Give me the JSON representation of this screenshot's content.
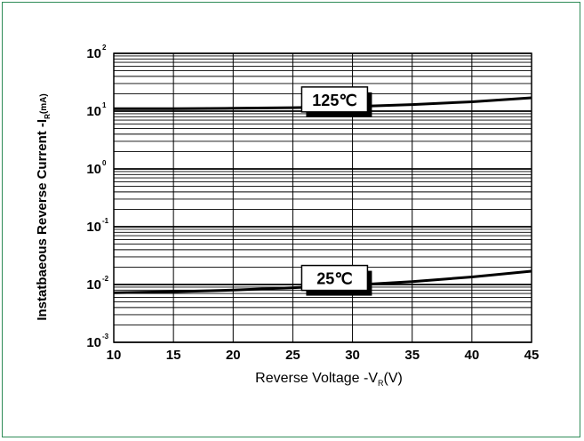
{
  "chart_data": {
    "type": "line",
    "title": "",
    "xlabel": "Reverse Voltage -V",
    "xlabel_sub": "R",
    "xlabel_unit": "(V)",
    "ylabel": "Instatbaeous Reverse Current -I",
    "ylabel_sub": "R",
    "ylabel_unit": "(mA)",
    "xlim": [
      10,
      45
    ],
    "ylim": [
      0.001,
      100
    ],
    "yscale": "log",
    "x_ticks": [
      "10",
      "15",
      "20",
      "25",
      "30",
      "35",
      "40",
      "45"
    ],
    "y_ticks": [
      {
        "base": "10",
        "exp": "2"
      },
      {
        "base": "10",
        "exp": "1"
      },
      {
        "base": "10",
        "exp": "0"
      },
      {
        "base": "10",
        "exp": "-1"
      },
      {
        "base": "10",
        "exp": "-2"
      },
      {
        "base": "10",
        "exp": "-3"
      }
    ],
    "grid": true,
    "series": [
      {
        "name": "125℃",
        "x": [
          10,
          15,
          20,
          25,
          30,
          35,
          40,
          45
        ],
        "y": [
          11,
          11,
          11.2,
          11.5,
          12,
          13,
          14.5,
          17
        ]
      },
      {
        "name": "25℃",
        "x": [
          10,
          15,
          20,
          25,
          30,
          35,
          40,
          45
        ],
        "y": [
          0.0072,
          0.0075,
          0.008,
          0.0088,
          0.0098,
          0.0112,
          0.0135,
          0.017
        ]
      }
    ]
  },
  "colors": {
    "border": "#2e8b57",
    "line": "#000000"
  }
}
